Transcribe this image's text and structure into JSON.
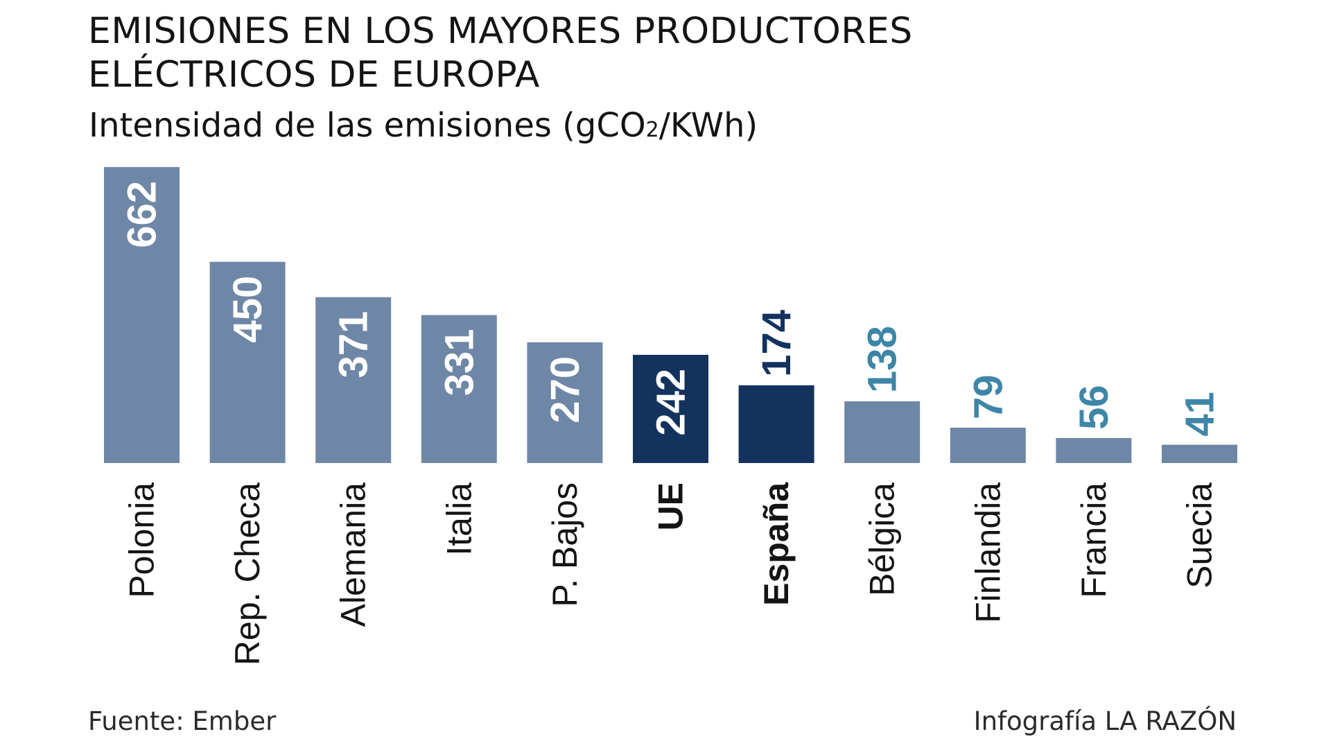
{
  "header": {
    "title_line1": "EMISIONES EN LOS MAYORES PRODUCTORES",
    "title_line2": "ELÉCTRICOS DE EUROPA",
    "subtitle_pre": "Intensidad de las emisiones (gCO",
    "subtitle_sub": "2",
    "subtitle_post": "/KWh)"
  },
  "footer": {
    "source": "Fuente: Ember",
    "credit": "Infografía LA RAZÓN"
  },
  "colors": {
    "bar_default": "#6f87a6",
    "bar_highlight": "#13335e",
    "label_outside_default": "#3d86a8",
    "label_outside_highlight": "#13335e",
    "label_inside": "#ffffff",
    "category_text": "#141414"
  },
  "chart_data": {
    "type": "bar",
    "title": "EMISIONES EN LOS MAYORES PRODUCTORES ELÉCTRICOS DE EUROPA",
    "subtitle": "Intensidad de las emisiones (gCO2/KWh)",
    "categories": [
      "Polonia",
      "Rep. Checa",
      "Alemania",
      "Italia",
      "P. Bajos",
      "UE",
      "España",
      "Bélgica",
      "Finlandia",
      "Francia",
      "Suecia"
    ],
    "values": [
      662,
      450,
      371,
      331,
      270,
      242,
      174,
      138,
      79,
      56,
      41
    ],
    "highlighted": [
      "UE",
      "España"
    ],
    "ylim": [
      0,
      662
    ],
    "grid": false,
    "legend": "none"
  }
}
